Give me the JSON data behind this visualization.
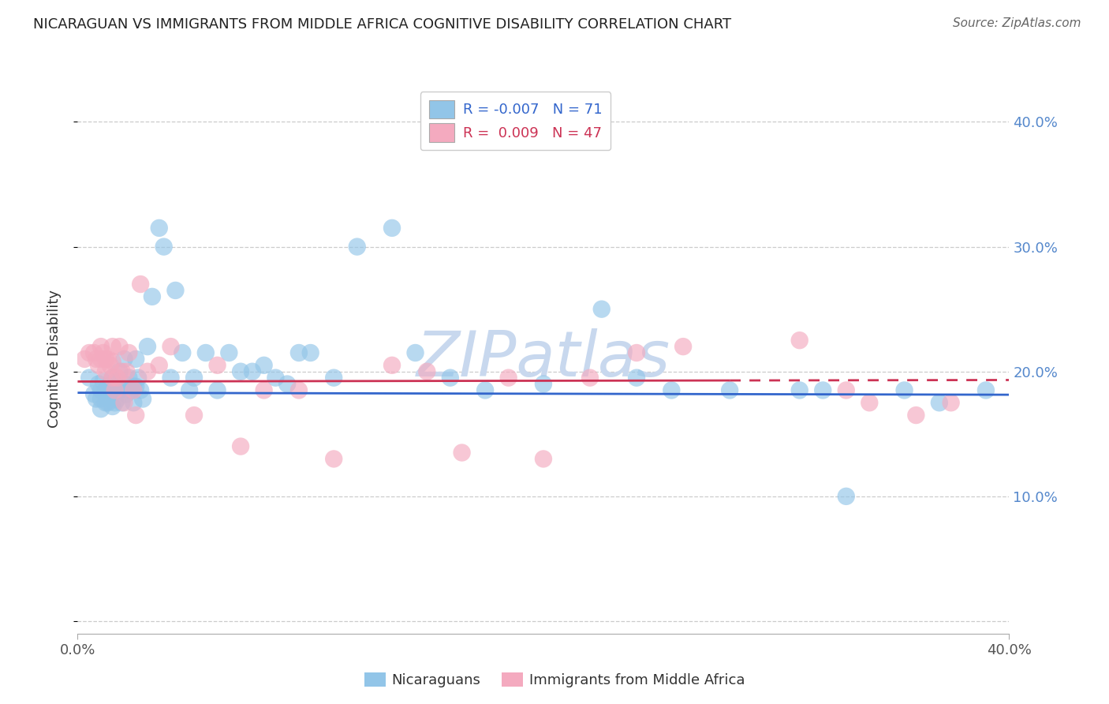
{
  "title": "NICARAGUAN VS IMMIGRANTS FROM MIDDLE AFRICA COGNITIVE DISABILITY CORRELATION CHART",
  "source": "Source: ZipAtlas.com",
  "ylabel": "Cognitive Disability",
  "xlim": [
    0.0,
    0.4
  ],
  "ylim": [
    -0.01,
    0.43
  ],
  "ytick_vals": [
    0.0,
    0.1,
    0.2,
    0.3,
    0.4
  ],
  "ytick_labels": [
    "",
    "10.0%",
    "20.0%",
    "30.0%",
    "40.0%"
  ],
  "xtick_vals": [
    0.0,
    0.4
  ],
  "xtick_labels": [
    "0.0%",
    "40.0%"
  ],
  "legend_r_blue": "-0.007",
  "legend_n_blue": "71",
  "legend_r_pink": "0.009",
  "legend_n_pink": "47",
  "legend_label_blue": "Nicaraguans",
  "legend_label_pink": "Immigrants from Middle Africa",
  "blue_color": "#92C5E8",
  "pink_color": "#F4AABF",
  "blue_line_color": "#3366CC",
  "pink_line_color": "#CC3355",
  "watermark_color": "#C8D8EE",
  "blue_line_y_intercept": 0.183,
  "blue_line_slope": -0.004,
  "pink_line_y_intercept": 0.192,
  "pink_line_slope": 0.003,
  "blue_scatter_x": [
    0.005,
    0.007,
    0.008,
    0.009,
    0.01,
    0.01,
    0.01,
    0.011,
    0.012,
    0.012,
    0.013,
    0.013,
    0.014,
    0.015,
    0.015,
    0.015,
    0.016,
    0.016,
    0.017,
    0.017,
    0.018,
    0.018,
    0.019,
    0.02,
    0.02,
    0.021,
    0.022,
    0.023,
    0.024,
    0.024,
    0.025,
    0.025,
    0.026,
    0.027,
    0.028,
    0.03,
    0.032,
    0.035,
    0.037,
    0.04,
    0.042,
    0.045,
    0.048,
    0.05,
    0.055,
    0.06,
    0.065,
    0.07,
    0.075,
    0.08,
    0.085,
    0.09,
    0.095,
    0.1,
    0.11,
    0.12,
    0.135,
    0.145,
    0.16,
    0.175,
    0.2,
    0.225,
    0.24,
    0.255,
    0.28,
    0.31,
    0.32,
    0.33,
    0.355,
    0.37,
    0.39
  ],
  "blue_scatter_y": [
    0.195,
    0.182,
    0.178,
    0.19,
    0.185,
    0.178,
    0.17,
    0.192,
    0.185,
    0.175,
    0.188,
    0.175,
    0.18,
    0.195,
    0.185,
    0.172,
    0.188,
    0.175,
    0.192,
    0.178,
    0.2,
    0.185,
    0.175,
    0.21,
    0.19,
    0.182,
    0.195,
    0.185,
    0.188,
    0.175,
    0.21,
    0.188,
    0.195,
    0.185,
    0.178,
    0.22,
    0.26,
    0.315,
    0.3,
    0.195,
    0.265,
    0.215,
    0.185,
    0.195,
    0.215,
    0.185,
    0.215,
    0.2,
    0.2,
    0.205,
    0.195,
    0.19,
    0.215,
    0.215,
    0.195,
    0.3,
    0.315,
    0.215,
    0.195,
    0.185,
    0.19,
    0.25,
    0.195,
    0.185,
    0.185,
    0.185,
    0.185,
    0.1,
    0.185,
    0.175,
    0.185
  ],
  "pink_scatter_x": [
    0.003,
    0.005,
    0.007,
    0.008,
    0.009,
    0.01,
    0.01,
    0.011,
    0.012,
    0.012,
    0.013,
    0.014,
    0.015,
    0.015,
    0.015,
    0.016,
    0.017,
    0.018,
    0.019,
    0.02,
    0.021,
    0.022,
    0.024,
    0.025,
    0.027,
    0.03,
    0.035,
    0.04,
    0.05,
    0.06,
    0.07,
    0.08,
    0.095,
    0.11,
    0.135,
    0.15,
    0.165,
    0.185,
    0.2,
    0.22,
    0.24,
    0.26,
    0.31,
    0.33,
    0.34,
    0.36,
    0.375
  ],
  "pink_scatter_y": [
    0.21,
    0.215,
    0.215,
    0.21,
    0.205,
    0.22,
    0.21,
    0.215,
    0.21,
    0.2,
    0.21,
    0.205,
    0.22,
    0.208,
    0.195,
    0.185,
    0.195,
    0.22,
    0.2,
    0.175,
    0.2,
    0.215,
    0.185,
    0.165,
    0.27,
    0.2,
    0.205,
    0.22,
    0.165,
    0.205,
    0.14,
    0.185,
    0.185,
    0.13,
    0.205,
    0.2,
    0.135,
    0.195,
    0.13,
    0.195,
    0.215,
    0.22,
    0.225,
    0.185,
    0.175,
    0.165,
    0.175
  ]
}
